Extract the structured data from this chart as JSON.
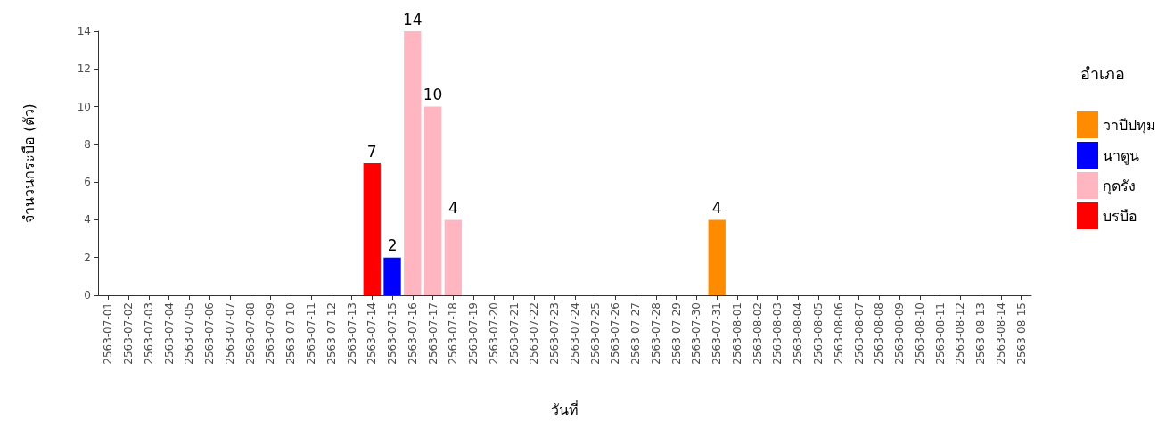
{
  "chart_data": {
    "type": "bar",
    "stacked": true,
    "xlabel": "วันที่",
    "ylabel": "จำนวนกระบือ (ตัว)",
    "legend_title": "อำเภอ",
    "legend": "right",
    "grid": false,
    "data_labels": true,
    "categories": [
      "2563-07-01",
      "2563-07-02",
      "2563-07-03",
      "2563-07-04",
      "2563-07-05",
      "2563-07-06",
      "2563-07-07",
      "2563-07-08",
      "2563-07-09",
      "2563-07-10",
      "2563-07-11",
      "2563-07-12",
      "2563-07-13",
      "2563-07-14",
      "2563-07-15",
      "2563-07-16",
      "2563-07-17",
      "2563-07-18",
      "2563-07-19",
      "2563-07-20",
      "2563-07-21",
      "2563-07-22",
      "2563-07-23",
      "2563-07-24",
      "2563-07-25",
      "2563-07-26",
      "2563-07-27",
      "2563-07-28",
      "2563-07-29",
      "2563-07-30",
      "2563-07-31",
      "2563-08-01",
      "2563-08-02",
      "2563-08-03",
      "2563-08-04",
      "2563-08-05",
      "2563-08-06",
      "2563-08-07",
      "2563-08-08",
      "2563-08-09",
      "2563-08-10",
      "2563-08-11",
      "2563-08-12",
      "2563-08-13",
      "2563-08-14",
      "2563-08-15"
    ],
    "ylim": [
      0,
      14
    ],
    "yticks": [
      0,
      2,
      4,
      6,
      8,
      10,
      12,
      14
    ],
    "series": [
      {
        "name": "วาปีปทุม",
        "color": "#ff8c00",
        "values": [
          null,
          null,
          null,
          null,
          null,
          null,
          null,
          null,
          null,
          null,
          null,
          null,
          null,
          null,
          null,
          null,
          null,
          null,
          null,
          null,
          null,
          null,
          null,
          null,
          null,
          null,
          null,
          null,
          null,
          null,
          4,
          null,
          null,
          null,
          null,
          null,
          null,
          null,
          null,
          null,
          null,
          null,
          null,
          null,
          null,
          null
        ]
      },
      {
        "name": "นาดูน",
        "color": "#0000ff",
        "values": [
          null,
          null,
          null,
          null,
          null,
          null,
          null,
          null,
          null,
          null,
          null,
          null,
          null,
          null,
          2,
          null,
          null,
          null,
          null,
          null,
          null,
          null,
          null,
          null,
          null,
          null,
          null,
          null,
          null,
          null,
          null,
          null,
          null,
          null,
          null,
          null,
          null,
          null,
          null,
          null,
          null,
          null,
          null,
          null,
          null,
          null
        ]
      },
      {
        "name": "กุดรัง",
        "color": "#ffb6c1",
        "values": [
          null,
          null,
          null,
          null,
          null,
          null,
          null,
          null,
          null,
          null,
          null,
          null,
          null,
          null,
          null,
          14,
          10,
          4,
          null,
          null,
          null,
          null,
          null,
          null,
          null,
          null,
          null,
          null,
          null,
          null,
          null,
          null,
          null,
          null,
          null,
          null,
          null,
          null,
          null,
          null,
          null,
          null,
          null,
          null,
          null,
          null
        ]
      },
      {
        "name": "บรบือ",
        "color": "#ff0000",
        "values": [
          null,
          null,
          null,
          null,
          null,
          null,
          null,
          null,
          null,
          null,
          null,
          null,
          null,
          7,
          null,
          null,
          null,
          null,
          null,
          null,
          null,
          null,
          null,
          null,
          null,
          null,
          null,
          null,
          null,
          null,
          null,
          null,
          null,
          null,
          null,
          null,
          null,
          null,
          null,
          null,
          null,
          null,
          null,
          null,
          null,
          null
        ]
      }
    ]
  }
}
